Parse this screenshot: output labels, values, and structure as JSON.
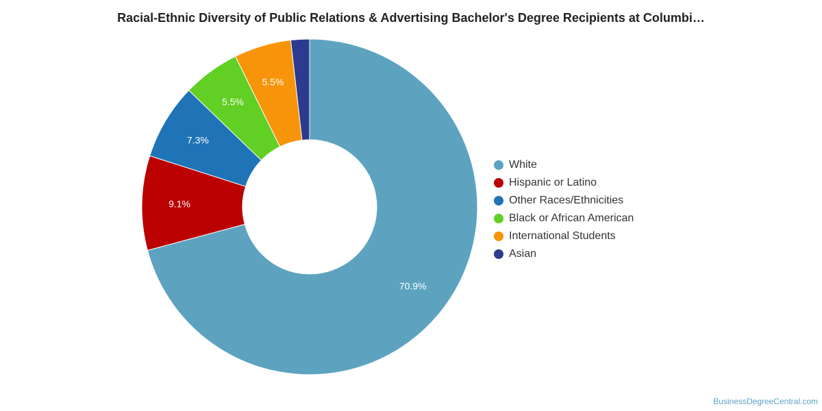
{
  "title": "Racial-Ethnic Diversity of Public Relations & Advertising Bachelor's Degree Recipients at Columbi…",
  "watermark": "BusinessDegreeCentral.com",
  "chart_data": {
    "type": "pie",
    "donut": true,
    "title": "Racial-Ethnic Diversity of Public Relations & Advertising Bachelor's Degree Recipients at Columbi…",
    "legend_position": "right",
    "slices": [
      {
        "name": "White",
        "value": 70.9,
        "label": "70.9%",
        "color": "#5da3c0"
      },
      {
        "name": "Hispanic or Latino",
        "value": 9.1,
        "label": "9.1%",
        "color": "#bb0000"
      },
      {
        "name": "Other Races/Ethnicities",
        "value": 7.3,
        "label": "7.3%",
        "color": "#1f73b7"
      },
      {
        "name": "Black or African American",
        "value": 5.5,
        "label": "5.5%",
        "color": "#62cf24"
      },
      {
        "name": "International Students",
        "value": 5.5,
        "label": "5.5%",
        "color": "#f7940a"
      },
      {
        "name": "Asian",
        "value": 1.8,
        "label": "",
        "color": "#2c3a8f"
      }
    ]
  }
}
